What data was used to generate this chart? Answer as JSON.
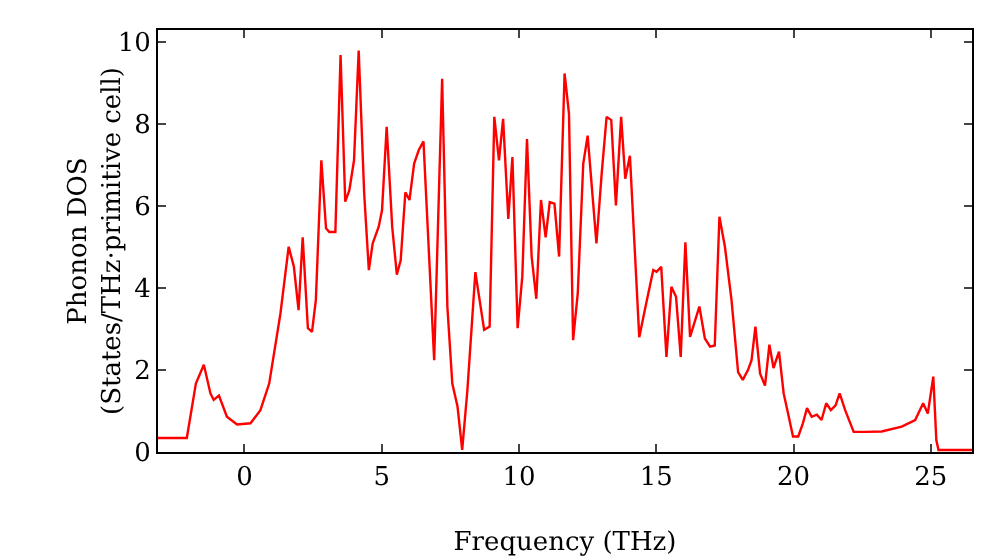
{
  "chart_data": {
    "type": "line",
    "xlabel": "Frequency (THz)",
    "ylabel": "Phonon DOS\n(States/THz·primitive cell)",
    "xlim": [
      -3.15,
      26.5
    ],
    "xticks": [
      0,
      5,
      10,
      15,
      20,
      25
    ],
    "ylim": [
      0,
      10.3
    ],
    "yticks": [
      0,
      2,
      4,
      6,
      8,
      10
    ],
    "grid": false,
    "marker": "none",
    "line_style": "solid",
    "series": [
      {
        "color": "#ff0000",
        "x": [
          -3.15,
          -2.1,
          -1.77,
          -1.48,
          -1.24,
          -1.12,
          -0.93,
          -0.64,
          -0.27,
          0.22,
          0.58,
          0.9,
          1.31,
          1.61,
          1.8,
          1.97,
          2.12,
          2.31,
          2.46,
          2.6,
          2.8,
          2.97,
          3.09,
          3.31,
          3.5,
          3.67,
          3.82,
          3.99,
          4.16,
          4.36,
          4.53,
          4.67,
          4.89,
          5.01,
          5.18,
          5.38,
          5.55,
          5.69,
          5.86,
          6.01,
          6.18,
          6.35,
          6.52,
          6.91,
          7.2,
          7.39,
          7.57,
          7.76,
          7.93,
          8.12,
          8.41,
          8.73,
          8.93,
          9.1,
          9.27,
          9.42,
          9.61,
          9.76,
          9.95,
          10.12,
          10.29,
          10.46,
          10.63,
          10.8,
          10.97,
          11.12,
          11.29,
          11.46,
          11.66,
          11.82,
          11.97,
          12.14,
          12.34,
          12.5,
          12.82,
          13.01,
          13.19,
          13.36,
          13.53,
          13.72,
          13.87,
          14.04,
          14.38,
          14.58,
          14.89,
          15.01,
          15.18,
          15.37,
          15.55,
          15.72,
          15.89,
          16.06,
          16.23,
          16.57,
          16.77,
          16.96,
          17.13,
          17.3,
          17.5,
          17.74,
          17.98,
          18.15,
          18.34,
          18.47,
          18.61,
          18.78,
          18.96,
          19.12,
          19.27,
          19.47,
          19.64,
          19.8,
          19.98,
          20.17,
          20.34,
          20.49,
          20.66,
          20.85,
          21.02,
          21.19,
          21.36,
          21.53,
          21.68,
          21.88,
          22.19,
          22.61,
          23.21,
          23.94,
          24.43,
          24.72,
          24.89,
          25.09,
          25.2,
          25.28,
          26.5
        ],
        "values": [
          0.34,
          0.34,
          1.67,
          2.13,
          1.43,
          1.27,
          1.38,
          0.86,
          0.67,
          0.7,
          1.02,
          1.67,
          3.38,
          5.01,
          4.52,
          3.46,
          5.24,
          3.02,
          2.93,
          3.71,
          7.12,
          5.46,
          5.37,
          5.37,
          9.69,
          6.11,
          6.39,
          7.12,
          9.8,
          6.31,
          4.44,
          5.09,
          5.5,
          5.9,
          7.94,
          5.5,
          4.33,
          4.68,
          6.34,
          6.15,
          7.04,
          7.37,
          7.58,
          2.24,
          9.11,
          3.55,
          1.67,
          1.11,
          0.05,
          1.51,
          4.39,
          2.98,
          3.06,
          8.18,
          7.12,
          8.13,
          5.69,
          7.2,
          3.02,
          4.28,
          7.64,
          4.77,
          3.74,
          6.15,
          5.24,
          6.1,
          6.06,
          4.77,
          9.24,
          8.26,
          2.73,
          3.87,
          7.04,
          7.72,
          5.09,
          6.79,
          8.18,
          8.1,
          6.02,
          8.18,
          6.67,
          7.23,
          2.8,
          3.46,
          4.44,
          4.4,
          4.52,
          2.32,
          4.03,
          3.79,
          2.32,
          5.12,
          2.81,
          3.55,
          2.77,
          2.57,
          2.6,
          5.74,
          5.01,
          3.71,
          1.95,
          1.76,
          2,
          2.24,
          3.06,
          1.92,
          1.62,
          2.62,
          2.05,
          2.45,
          1.43,
          0.94,
          0.38,
          0.38,
          0.7,
          1.07,
          0.86,
          0.91,
          0.78,
          1.19,
          1.02,
          1.14,
          1.43,
          1.02,
          0.49,
          0.49,
          0.5,
          0.62,
          0.78,
          1.19,
          0.94,
          1.84,
          0.29,
          0.05,
          0.05
        ]
      }
    ]
  }
}
